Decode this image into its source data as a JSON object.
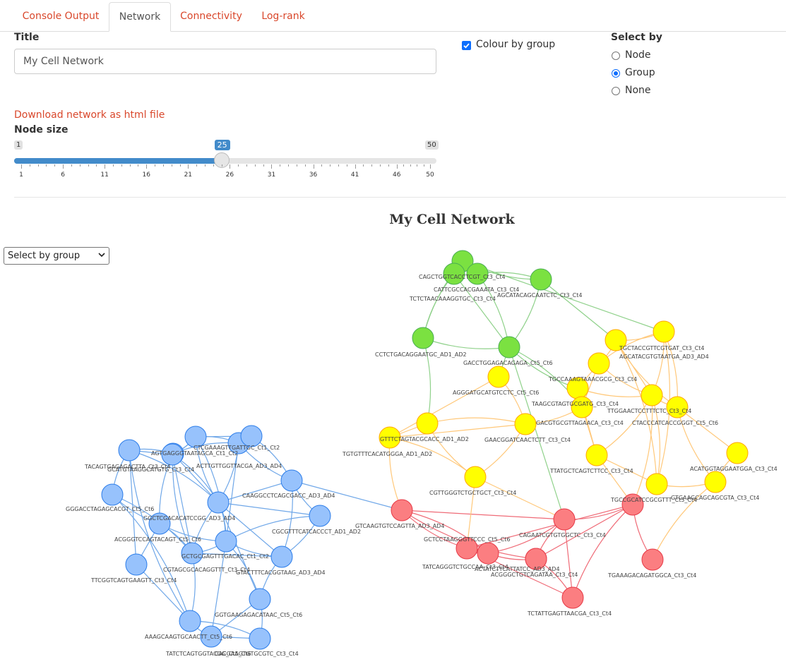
{
  "tabs": [
    {
      "label": "Console Output",
      "active": false
    },
    {
      "label": "Network",
      "active": true
    },
    {
      "label": "Connectivity",
      "active": false
    },
    {
      "label": "Log-rank",
      "active": false
    }
  ],
  "form": {
    "title_label": "Title",
    "title_value": "My Cell Network",
    "colour_by_group_label": "Colour by group",
    "colour_by_group_checked": true,
    "select_by_label": "Select by",
    "select_by_options": [
      "Node",
      "Group",
      "None"
    ],
    "select_by_selected": "Group",
    "download_link": "Download network as html file",
    "node_size_label": "Node size",
    "slider": {
      "min": 1,
      "max": 50,
      "value": 25,
      "min_label": "1",
      "max_label": "50",
      "value_label": "25",
      "ticks": [
        "1",
        "6",
        "11",
        "16",
        "21",
        "26",
        "31",
        "36",
        "41",
        "46",
        "50"
      ]
    }
  },
  "network": {
    "title": "My Cell Network",
    "select_dropdown": "Select by group",
    "colors": {
      "blue": "#97C2FC",
      "blue_border": "#2B7CE9",
      "green": "#7BE141",
      "green_border": "#4AAD52",
      "yellow": "#FFFF00",
      "yellow_border": "#FFA500",
      "red": "#FB7E81",
      "red_border": "#E63946",
      "edge_blue": "#6fa7e8",
      "edge_green": "#8fd18a",
      "edge_yellow": "#ffc87a",
      "edge_red": "#ef6b77"
    },
    "nodes": [
      {
        "id": "b1",
        "group": "blue",
        "label": "TACAGTGAGAGACTTA_Ct3_Ct4"
      },
      {
        "id": "b2",
        "group": "blue",
        "label": "AGTGAGGGTAATAGCA_Ct1_Ct2"
      },
      {
        "id": "b3",
        "group": "blue",
        "label": "CTCGAAAGTTGATTGC_Ct1_Ct2"
      },
      {
        "id": "b4",
        "group": "blue",
        "label": "GCATGTAAGGCATGTG_Ct3_Ct4"
      },
      {
        "id": "b5",
        "group": "blue",
        "label": "ACTTGTTGGTTACGA_AD3_AD4"
      },
      {
        "id": "b6",
        "group": "blue",
        "label": "GGGACCTAGAGCACGT_Ct5_Ct6"
      },
      {
        "id": "b7",
        "group": "blue",
        "label": "CAAGGCCTCAGCGACC_AD3_AD4"
      },
      {
        "id": "b8",
        "group": "blue",
        "label": "GGCTCGACACATCCGG_AD3_AD4"
      },
      {
        "id": "b9",
        "group": "blue",
        "label": "CGCGTTTCATCACCCT_AD1_AD2"
      },
      {
        "id": "b10",
        "group": "blue",
        "label": "ACGGGTCCAGTACAGT_Ct5_Ct6"
      },
      {
        "id": "b11",
        "group": "blue",
        "label": "GCTGCGAGTTTGACAC_Ct1_Ct2"
      },
      {
        "id": "b12",
        "group": "blue",
        "label": "CGTAGCGCACAGGTTT_Ct3_Ct4"
      },
      {
        "id": "b13",
        "group": "blue",
        "label": "TTCGGTCAGTGAAGTT_Ct3_Ct4"
      },
      {
        "id": "b14",
        "group": "blue",
        "label": "GTACTTTCACGGTAAG_AD3_AD4"
      },
      {
        "id": "b15",
        "group": "blue",
        "label": "GGTGAAGAGACATAAC_Ct5_Ct6"
      },
      {
        "id": "b16",
        "group": "blue",
        "label": "AAAGCAAGTGCAACTT_Ct5_Ct6"
      },
      {
        "id": "b17",
        "group": "blue",
        "label": "TATCTCAGTGGTACGG_Ct5_Ct6"
      },
      {
        "id": "b18",
        "group": "blue",
        "label": "CACGAAGTGTGCGTC_Ct3_Ct4"
      },
      {
        "id": "b19",
        "group": "blue",
        "label": ""
      },
      {
        "id": "g1",
        "group": "green",
        "label": "CAGCTGGTCACCTCGT_Ct3_Ct4"
      },
      {
        "id": "g2",
        "group": "green",
        "label": "CATTCGCCACGAAATA_Ct3_Ct4"
      },
      {
        "id": "g3",
        "group": "green",
        "label": "TCTCTAACAAAGGTGC_Ct3_Ct4"
      },
      {
        "id": "g4",
        "group": "green",
        "label": "AGCATACAGCAATCTC_Ct3_Ct4"
      },
      {
        "id": "g5",
        "group": "green",
        "label": "CCTCTGACAGGAATGC_AD1_AD2"
      },
      {
        "id": "g6",
        "group": "green",
        "label": "GACCTGGAGACAGAGA_Ct5_Ct6"
      },
      {
        "id": "y1",
        "group": "yellow",
        "label": "TGCTACCGTTCGTGAT_Ct3_Ct4"
      },
      {
        "id": "y2",
        "group": "yellow",
        "label": "AGCATACGTGTAATGA_AD3_AD4"
      },
      {
        "id": "y3",
        "group": "yellow",
        "label": "TGCCAAAGTAAACGCG_Ct3_Ct4"
      },
      {
        "id": "y4",
        "group": "yellow",
        "label": "AGGGATGCATGTCCTC_Ct5_Ct6"
      },
      {
        "id": "y5",
        "group": "yellow",
        "label": "TAAGCGTAGTGCGATG_Ct3_Ct4"
      },
      {
        "id": "y6",
        "group": "yellow",
        "label": "TTGGAACTCCTTTCTC_Ct3_Ct4"
      },
      {
        "id": "y7",
        "group": "yellow",
        "label": "CTACCCATCACCGGGT_Ct5_Ct6"
      },
      {
        "id": "y8",
        "group": "yellow",
        "label": "GACGTGCGTTAGAACA_Ct3_Ct4"
      },
      {
        "id": "y9",
        "group": "yellow",
        "label": "GAACGGATCAACTCTT_Ct3_Ct4"
      },
      {
        "id": "y10",
        "group": "yellow",
        "label": "TGTGTTTCACATGGGA_AD1_AD2"
      },
      {
        "id": "y11",
        "group": "yellow",
        "label": "GTTTCTAGTACGCACC_AD1_AD2"
      },
      {
        "id": "y12",
        "group": "yellow",
        "label": "TTATGCTCAGTCTTCC_Ct3_Ct4"
      },
      {
        "id": "y13",
        "group": "yellow",
        "label": "ACATGGTAGGAATGGA_Ct3_Ct4"
      },
      {
        "id": "y14",
        "group": "yellow",
        "label": "CGTTGGGTCTGCTGCT_Ct3_Ct4"
      },
      {
        "id": "y15",
        "group": "yellow",
        "label": "GTGAAGCAGCAGCGTA_Ct3_Ct4"
      },
      {
        "id": "y16",
        "group": "yellow",
        "label": ""
      },
      {
        "id": "r1",
        "group": "red",
        "label": "GTCAAGTGTCCAGTTA_AD3_AD4"
      },
      {
        "id": "r2",
        "group": "red",
        "label": "TGCCGCATCCGCGTTT_Ct3_Ct4"
      },
      {
        "id": "r3",
        "group": "red",
        "label": "CAGAATCGTGTGGCTC_Ct3_Ct4"
      },
      {
        "id": "r4",
        "group": "red",
        "label": "GCTCCTAAGGGTTCCC_Ct5_Ct6"
      },
      {
        "id": "r5",
        "group": "red",
        "label": "TATCAGGGTCTGCCAA_Ct3_Ct4"
      },
      {
        "id": "r6",
        "group": "red",
        "label": "ACTATCTTCATTATCC_AD3_AD4"
      },
      {
        "id": "r7",
        "group": "red",
        "label": "ACGGGCTGTCAGATAA_Ct3_Ct4"
      },
      {
        "id": "r8",
        "group": "red",
        "label": "TGAAAGACAGATGGCA_Ct3_Ct4"
      },
      {
        "id": "r9",
        "group": "red",
        "label": "TCTATTGAGTTAACGA_Ct3_Ct4"
      }
    ]
  }
}
